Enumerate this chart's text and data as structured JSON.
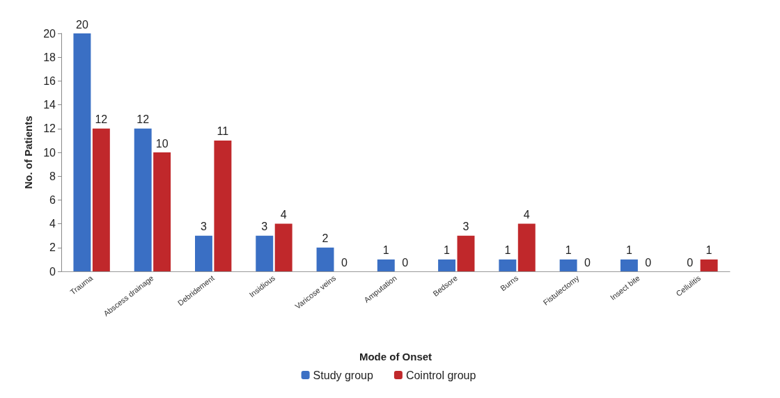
{
  "chart_data": {
    "type": "bar",
    "xlabel": "Mode of Onset",
    "ylabel": "No. of Patients",
    "categories": [
      "Trauma",
      "Abscess drainage",
      "Debridement",
      "Insidious",
      "Varicose veins",
      "Amputation",
      "Bedsore",
      "Burns",
      "Fistulectomy",
      "Insect bite",
      "Cellulitis"
    ],
    "series": [
      {
        "name": "Study group",
        "color": "#3a6fc4",
        "values": [
          20,
          12,
          3,
          3,
          2,
          1,
          1,
          1,
          1,
          1,
          0
        ]
      },
      {
        "name": "Cointrol group",
        "color": "#c0282b",
        "values": [
          12,
          10,
          11,
          4,
          0,
          0,
          3,
          4,
          0,
          0,
          1
        ]
      }
    ],
    "ylim": [
      0,
      20
    ],
    "yticks": [
      0,
      2,
      4,
      6,
      8,
      10,
      12,
      14,
      16,
      18,
      20
    ],
    "data_labels": true,
    "legend": "bottom"
  }
}
